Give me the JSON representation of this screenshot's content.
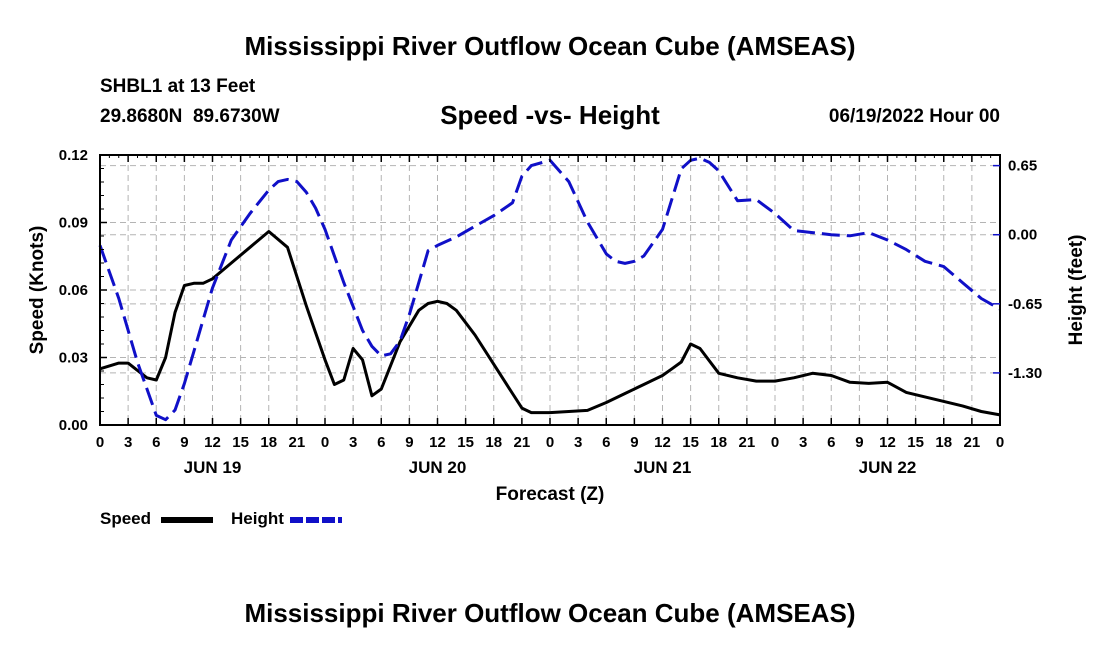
{
  "page": {
    "title": "Mississippi River Outflow Ocean Cube (AMSEAS)",
    "title_repeat": "Mississippi River Outflow Ocean Cube (AMSEAS)",
    "station": "SHBL1 at 13 Feet",
    "latlon": "29.8680N  89.6730W",
    "subtitle": "Speed -vs- Height",
    "datetime": "06/19/2022 Hour 00"
  },
  "legend": {
    "speed_label": "Speed",
    "height_label": "Height"
  },
  "colors": {
    "speed": "#000000",
    "height": "#1010c8",
    "grid": "#b4b4b4"
  },
  "chart_data": {
    "type": "line",
    "title": "Speed -vs- Height",
    "xlabel": "Forecast (Z)",
    "ylabel": "Speed (Knots)",
    "y2label": "Height (feet)",
    "x_unit": "hours from 06/19/2022 00Z",
    "xlim": [
      0,
      96
    ],
    "ylim": [
      0,
      0.12
    ],
    "y2lim": [
      -1.79,
      0.75
    ],
    "x_ticks": [
      0,
      3,
      6,
      9,
      12,
      15,
      18,
      21,
      24,
      27,
      30,
      33,
      36,
      39,
      42,
      45,
      48,
      51,
      54,
      57,
      60,
      63,
      66,
      69,
      72,
      75,
      78,
      81,
      84,
      87,
      90,
      93,
      96
    ],
    "x_tick_labels": [
      "0",
      "3",
      "6",
      "9",
      "12",
      "15",
      "18",
      "21",
      "0",
      "3",
      "6",
      "9",
      "12",
      "15",
      "18",
      "21",
      "0",
      "3",
      "6",
      "9",
      "12",
      "15",
      "18",
      "21",
      "0",
      "3",
      "6",
      "9",
      "12",
      "15",
      "18",
      "21",
      "0"
    ],
    "date_labels": [
      {
        "hour": 12,
        "label": "JUN 19"
      },
      {
        "hour": 36,
        "label": "JUN 20"
      },
      {
        "hour": 60,
        "label": "JUN 21"
      },
      {
        "hour": 84,
        "label": "JUN 22"
      }
    ],
    "y_ticks": [
      0,
      0.03,
      0.06,
      0.09,
      0.12
    ],
    "y_tick_labels": [
      "0.00",
      "0.03",
      "0.06",
      "0.09",
      "0.12"
    ],
    "y2_ticks": [
      0.65,
      0,
      -0.65,
      -1.3
    ],
    "y2_tick_labels": [
      "0.65",
      "0.00",
      "-0.65",
      "-1.30"
    ],
    "series": [
      {
        "name": "Speed",
        "axis": "left",
        "x": [
          0,
          2,
          3,
          5,
          6,
          7,
          8,
          9,
          10,
          11,
          12,
          14,
          16,
          18,
          20,
          22,
          23,
          24,
          25,
          26,
          27,
          28,
          29,
          30,
          32,
          34,
          35,
          36,
          37,
          38,
          40,
          42,
          44,
          45,
          46,
          48,
          50,
          52,
          54,
          56,
          58,
          60,
          61,
          62,
          63,
          64,
          66,
          68,
          70,
          72,
          74,
          76,
          78,
          80,
          82,
          84,
          86,
          88,
          90,
          92,
          94,
          96
        ],
        "values": [
          0.025,
          0.0275,
          0.0275,
          0.021,
          0.02,
          0.03,
          0.05,
          0.062,
          0.063,
          0.063,
          0.065,
          0.072,
          0.079,
          0.086,
          0.079,
          0.053,
          0.041,
          0.029,
          0.018,
          0.02,
          0.034,
          0.029,
          0.013,
          0.016,
          0.037,
          0.051,
          0.054,
          0.055,
          0.054,
          0.051,
          0.04,
          0.027,
          0.014,
          0.0075,
          0.0055,
          0.0055,
          0.006,
          0.0065,
          0.01,
          0.014,
          0.018,
          0.022,
          0.025,
          0.028,
          0.036,
          0.034,
          0.023,
          0.021,
          0.0195,
          0.0195,
          0.021,
          0.023,
          0.022,
          0.019,
          0.0185,
          0.019,
          0.0145,
          0.0125,
          0.0105,
          0.0085,
          0.006,
          0.0045
        ]
      },
      {
        "name": "Height",
        "axis": "right",
        "x": [
          0,
          2,
          4,
          6,
          7,
          8,
          9,
          10,
          11,
          12,
          14,
          16,
          18,
          19,
          20,
          21,
          22,
          23,
          24,
          26,
          28,
          29,
          30,
          31,
          32,
          33,
          34,
          35,
          36,
          38,
          40,
          42,
          44,
          45,
          46,
          48,
          50,
          52,
          54,
          55,
          56,
          57,
          58,
          60,
          62,
          63,
          64,
          65,
          66,
          68,
          70,
          72,
          74,
          76,
          78,
          80,
          82,
          84,
          86,
          88,
          90,
          92,
          94,
          95,
          96
        ],
        "values": [
          -0.1,
          -0.6,
          -1.2,
          -1.7,
          -1.74,
          -1.65,
          -1.4,
          -1.1,
          -0.8,
          -0.5,
          -0.05,
          0.2,
          0.42,
          0.5,
          0.52,
          0.5,
          0.4,
          0.25,
          0.05,
          -0.45,
          -0.9,
          -1.05,
          -1.14,
          -1.12,
          -1.0,
          -0.75,
          -0.45,
          -0.15,
          -0.1,
          -0.02,
          0.08,
          0.18,
          0.3,
          0.55,
          0.65,
          0.7,
          0.5,
          0.12,
          -0.18,
          -0.25,
          -0.27,
          -0.25,
          -0.2,
          0.05,
          0.62,
          0.7,
          0.72,
          0.68,
          0.6,
          0.32,
          0.33,
          0.2,
          0.04,
          0.02,
          0.0,
          -0.01,
          0.02,
          -0.05,
          -0.14,
          -0.25,
          -0.3,
          -0.45,
          -0.6,
          -0.65,
          -0.7
        ]
      }
    ]
  }
}
